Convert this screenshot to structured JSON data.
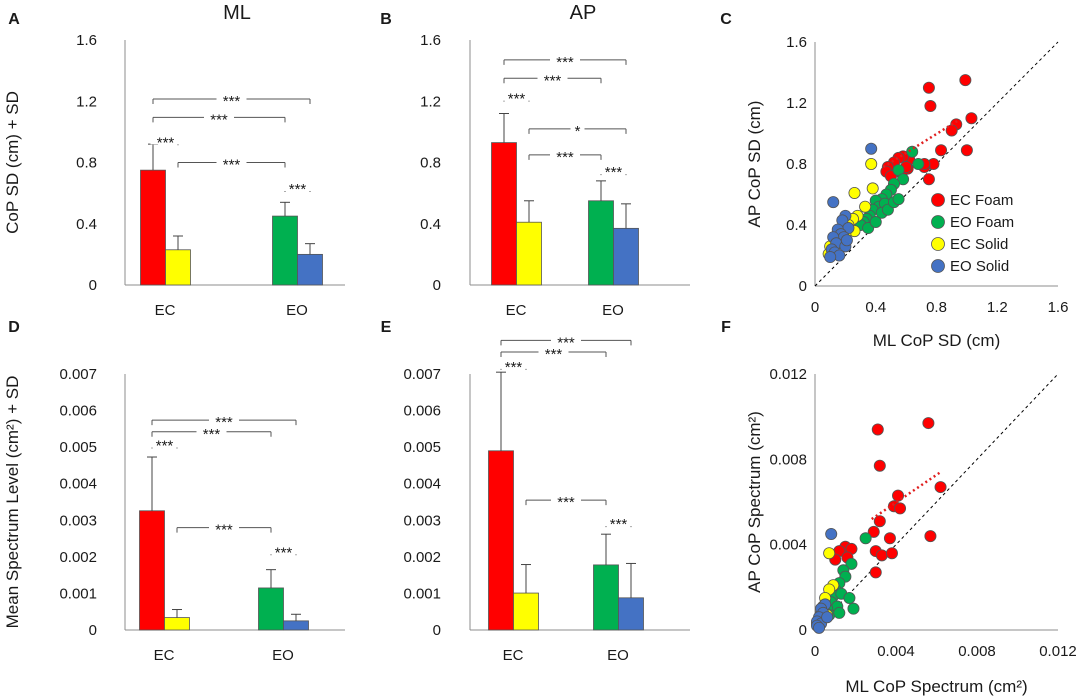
{
  "figure": {
    "colors": {
      "ec_foam": "#ff0000",
      "ec_solid": "#ffff00",
      "eo_foam": "#00b050",
      "eo_solid": "#4472c4",
      "axis": "#8c8c8c",
      "text": "#1a1a1a",
      "fit": "#e02020",
      "identity": "#000000"
    }
  },
  "chart_data": [
    {
      "id": "A",
      "type": "bar",
      "panel_label": "A",
      "title": "ML",
      "ylabel": "CoP SD (cm) + SD",
      "xlabel": "",
      "categories": [
        "EC",
        "EO"
      ],
      "ylim": [
        0,
        1.6
      ],
      "yticks": [
        0,
        0.4,
        0.8,
        1.2,
        1.6
      ],
      "ytick_labels": [
        "0",
        "0.4",
        "0.8",
        "1.2",
        "1.6"
      ],
      "series": [
        {
          "name": "Foam",
          "values": [
            0.75,
            0.45
          ],
          "errors": [
            0.17,
            0.09
          ],
          "colors": [
            "ec_foam",
            "eo_foam"
          ]
        },
        {
          "name": "Solid",
          "values": [
            0.23,
            0.2
          ],
          "errors": [
            0.09,
            0.07
          ],
          "colors": [
            "ec_solid",
            "eo_solid"
          ]
        }
      ],
      "significance": [
        {
          "from": "EC-Foam",
          "to": "EC-Solid",
          "label": "***",
          "level": 0.945
        },
        {
          "from": "EC-Foam",
          "to": "EO-Foam",
          "label": "***",
          "level": 1.095
        },
        {
          "from": "EC-Foam",
          "to": "EO-Solid",
          "label": "***",
          "level": 1.215
        },
        {
          "from": "EC-Solid",
          "to": "EO-Foam",
          "label": "***",
          "level": 0.8
        },
        {
          "from": "EO-Foam",
          "to": "EO-Solid",
          "label": "***",
          "level": 0.64
        }
      ]
    },
    {
      "id": "B",
      "type": "bar",
      "panel_label": "B",
      "title": "AP",
      "ylabel": "",
      "xlabel": "",
      "categories": [
        "EC",
        "EO"
      ],
      "ylim": [
        0,
        1.6
      ],
      "yticks": [
        0,
        0.4,
        0.8,
        1.2,
        1.6
      ],
      "ytick_labels": [
        "0",
        "0.4",
        "0.8",
        "1.2",
        "1.6"
      ],
      "series": [
        {
          "name": "Foam",
          "values": [
            0.93,
            0.55
          ],
          "errors": [
            0.19,
            0.13
          ],
          "colors": [
            "ec_foam",
            "eo_foam"
          ]
        },
        {
          "name": "Solid",
          "values": [
            0.41,
            0.37
          ],
          "errors": [
            0.14,
            0.16
          ],
          "colors": [
            "ec_solid",
            "eo_solid"
          ]
        }
      ],
      "significance": [
        {
          "from": "EC-Foam",
          "to": "EC-Solid",
          "label": "***",
          "level": 1.23
        },
        {
          "from": "EC-Foam",
          "to": "EO-Foam",
          "label": "***",
          "level": 1.35
        },
        {
          "from": "EC-Foam",
          "to": "EO-Solid",
          "label": "***",
          "level": 1.47
        },
        {
          "from": "EC-Solid",
          "to": "EO-Solid",
          "label": "*",
          "level": 1.02
        },
        {
          "from": "EC-Solid",
          "to": "EO-Foam",
          "label": "***",
          "level": 0.85
        },
        {
          "from": "EO-Foam",
          "to": "EO-Solid",
          "label": "***",
          "level": 0.75
        }
      ]
    },
    {
      "id": "C",
      "type": "scatter",
      "panel_label": "C",
      "xlabel": "ML CoP SD (cm)",
      "ylabel": "AP CoP SD (cm)",
      "xlim": [
        0,
        1.6
      ],
      "ylim": [
        0,
        1.6
      ],
      "xticks": [
        0,
        0.4,
        0.8,
        1.2,
        1.6
      ],
      "xtick_labels": [
        "0",
        "0.4",
        "0.8",
        "1.2",
        "1.6"
      ],
      "yticks": [
        0,
        0.4,
        0.8,
        1.2,
        1.6
      ],
      "ytick_labels": [
        "0",
        "0.4",
        "0.8",
        "1.2",
        "1.6"
      ],
      "legend": {
        "position": "right",
        "entries": [
          {
            "label": "EC Foam",
            "color": "ec_foam"
          },
          {
            "label": "EO Foam",
            "color": "eo_foam"
          },
          {
            "label": "EC Solid",
            "color": "ec_solid"
          },
          {
            "label": "EO Solid",
            "color": "eo_solid"
          }
        ]
      },
      "identity_line": true,
      "fit_line": {
        "color": "fit",
        "x": [
          0.45,
          0.95
        ],
        "y": [
          0.78,
          1.09
        ]
      },
      "series": [
        {
          "name": "EC Foam",
          "color": "ec_foam",
          "points": [
            [
              0.75,
              1.3
            ],
            [
              0.76,
              1.18
            ],
            [
              0.99,
              1.35
            ],
            [
              1.03,
              1.1
            ],
            [
              0.93,
              1.06
            ],
            [
              0.9,
              1.02
            ],
            [
              0.83,
              0.89
            ],
            [
              1.0,
              0.89
            ],
            [
              0.78,
              0.8
            ],
            [
              0.75,
              0.7
            ],
            [
              0.72,
              0.78
            ],
            [
              0.72,
              0.8
            ],
            [
              0.62,
              0.83
            ],
            [
              0.58,
              0.85
            ],
            [
              0.55,
              0.84
            ],
            [
              0.52,
              0.81
            ],
            [
              0.61,
              0.77
            ],
            [
              0.48,
              0.78
            ],
            [
              0.47,
              0.75
            ],
            [
              0.5,
              0.72
            ],
            [
              0.57,
              0.74
            ],
            [
              0.6,
              0.78
            ]
          ]
        },
        {
          "name": "EO Foam",
          "color": "eo_foam",
          "points": [
            [
              0.64,
              0.88
            ],
            [
              0.68,
              0.8
            ],
            [
              0.55,
              0.76
            ],
            [
              0.58,
              0.7
            ],
            [
              0.52,
              0.67
            ],
            [
              0.5,
              0.63
            ],
            [
              0.47,
              0.6
            ],
            [
              0.44,
              0.57
            ],
            [
              0.4,
              0.56
            ],
            [
              0.42,
              0.52
            ],
            [
              0.46,
              0.54
            ],
            [
              0.38,
              0.5
            ],
            [
              0.36,
              0.46
            ],
            [
              0.34,
              0.44
            ],
            [
              0.32,
              0.42
            ],
            [
              0.3,
              0.4
            ],
            [
              0.35,
              0.38
            ],
            [
              0.4,
              0.42
            ],
            [
              0.44,
              0.48
            ],
            [
              0.48,
              0.5
            ],
            [
              0.52,
              0.55
            ],
            [
              0.55,
              0.57
            ]
          ]
        },
        {
          "name": "EC Solid",
          "color": "ec_solid",
          "points": [
            [
              0.37,
              0.8
            ],
            [
              0.26,
              0.61
            ],
            [
              0.38,
              0.64
            ],
            [
              0.33,
              0.52
            ],
            [
              0.28,
              0.46
            ],
            [
              0.25,
              0.44
            ],
            [
              0.22,
              0.4
            ],
            [
              0.26,
              0.36
            ],
            [
              0.2,
              0.34
            ],
            [
              0.17,
              0.32
            ],
            [
              0.14,
              0.3
            ],
            [
              0.1,
              0.26
            ],
            [
              0.12,
              0.22
            ],
            [
              0.15,
              0.28
            ],
            [
              0.09,
              0.21
            ]
          ]
        },
        {
          "name": "EO Solid",
          "color": "eo_solid",
          "points": [
            [
              0.37,
              0.9
            ],
            [
              0.12,
              0.55
            ],
            [
              0.2,
              0.46
            ],
            [
              0.18,
              0.43
            ],
            [
              0.22,
              0.38
            ],
            [
              0.15,
              0.37
            ],
            [
              0.17,
              0.34
            ],
            [
              0.19,
              0.32
            ],
            [
              0.12,
              0.32
            ],
            [
              0.14,
              0.28
            ],
            [
              0.2,
              0.26
            ],
            [
              0.11,
              0.24
            ],
            [
              0.13,
              0.22
            ],
            [
              0.16,
              0.2
            ],
            [
              0.1,
              0.19
            ],
            [
              0.21,
              0.3
            ]
          ]
        }
      ]
    },
    {
      "id": "D",
      "type": "bar",
      "panel_label": "D",
      "title": "",
      "ylabel": "Mean Spectrum Level (cm²) + SD",
      "xlabel": "",
      "categories": [
        "EC",
        "EO"
      ],
      "ylim": [
        0,
        0.007
      ],
      "yticks": [
        0,
        0.001,
        0.002,
        0.003,
        0.004,
        0.005,
        0.006,
        0.007
      ],
      "ytick_labels": [
        "0",
        "0.001",
        "0.002",
        "0.003",
        "0.004",
        "0.005",
        "0.006",
        "0.007"
      ],
      "series": [
        {
          "name": "Foam",
          "values": [
            0.00326,
            0.00115
          ],
          "errors": [
            0.00147,
            0.0005
          ],
          "colors": [
            "ec_foam",
            "eo_foam"
          ]
        },
        {
          "name": "Solid",
          "values": [
            0.00034,
            0.00025
          ],
          "errors": [
            0.00022,
            0.00018
          ],
          "colors": [
            "ec_solid",
            "eo_solid"
          ]
        }
      ],
      "significance": [
        {
          "from": "EC-Foam",
          "to": "EC-Solid",
          "label": "***",
          "level": 0.0051
        },
        {
          "from": "EC-Foam",
          "to": "EO-Foam",
          "label": "***",
          "level": 0.00542
        },
        {
          "from": "EC-Foam",
          "to": "EO-Solid",
          "label": "***",
          "level": 0.00574
        },
        {
          "from": "EC-Solid",
          "to": "EO-Foam",
          "label": "***",
          "level": 0.0028
        },
        {
          "from": "EO-Foam",
          "to": "EO-Solid",
          "label": "***",
          "level": 0.00218
        }
      ]
    },
    {
      "id": "E",
      "type": "bar",
      "panel_label": "E",
      "title": "",
      "ylabel": "",
      "xlabel": "",
      "categories": [
        "EC",
        "EO"
      ],
      "ylim": [
        0,
        0.007
      ],
      "yticks": [
        0,
        0.001,
        0.002,
        0.003,
        0.004,
        0.005,
        0.006,
        0.007
      ],
      "ytick_labels": [
        "0",
        "0.001",
        "0.002",
        "0.003",
        "0.004",
        "0.005",
        "0.006",
        "0.007"
      ],
      "series": [
        {
          "name": "Foam",
          "values": [
            0.0049,
            0.00178
          ],
          "errors": [
            0.00215,
            0.00084
          ],
          "colors": [
            "ec_foam",
            "eo_foam"
          ]
        },
        {
          "name": "Solid",
          "values": [
            0.00101,
            0.00088
          ],
          "errors": [
            0.00078,
            0.00094
          ],
          "colors": [
            "ec_solid",
            "eo_solid"
          ]
        }
      ],
      "significance": [
        {
          "from": "EC-Foam",
          "to": "EC-Solid",
          "label": "***",
          "level": 0.00725
        },
        {
          "from": "EC-Foam",
          "to": "EO-Foam",
          "label": "***",
          "level": 0.0076
        },
        {
          "from": "EC-Foam",
          "to": "EO-Solid",
          "label": "***",
          "level": 0.00792
        },
        {
          "from": "EC-Solid",
          "to": "EO-Foam",
          "label": "***",
          "level": 0.00355
        },
        {
          "from": "EO-Foam",
          "to": "EO-Solid",
          "label": "***",
          "level": 0.00295
        }
      ]
    },
    {
      "id": "F",
      "type": "scatter",
      "panel_label": "F",
      "xlabel": "ML CoP Spectrum (cm²)",
      "ylabel": "AP CoP Spectrum (cm²)",
      "xlim": [
        0,
        0.012
      ],
      "ylim": [
        0,
        0.012
      ],
      "xticks": [
        0,
        0.004,
        0.008,
        0.012
      ],
      "xtick_labels": [
        "0",
        "0.004",
        "0.008",
        "0.012"
      ],
      "yticks": [
        0,
        0.004,
        0.008,
        0.012
      ],
      "ytick_labels": [
        "0",
        "0.004",
        "0.008",
        "0.012"
      ],
      "identity_line": true,
      "fit_line": {
        "color": "fit",
        "x": [
          0.0028,
          0.0062
        ],
        "y": [
          0.0052,
          0.0074
        ]
      },
      "series": [
        {
          "name": "EC Foam",
          "color": "ec_foam",
          "points": [
            [
              0.0031,
              0.0094
            ],
            [
              0.0032,
              0.0077
            ],
            [
              0.0056,
              0.0097
            ],
            [
              0.0062,
              0.0067
            ],
            [
              0.0041,
              0.0063
            ],
            [
              0.0039,
              0.0058
            ],
            [
              0.0042,
              0.0057
            ],
            [
              0.0032,
              0.0051
            ],
            [
              0.0029,
              0.0046
            ],
            [
              0.0057,
              0.0044
            ],
            [
              0.0037,
              0.0043
            ],
            [
              0.003,
              0.0037
            ],
            [
              0.0033,
              0.0035
            ],
            [
              0.0038,
              0.0036
            ],
            [
              0.0015,
              0.0039
            ],
            [
              0.0018,
              0.0038
            ],
            [
              0.0012,
              0.0037
            ],
            [
              0.001,
              0.0033
            ],
            [
              0.0016,
              0.0034
            ],
            [
              0.003,
              0.0027
            ]
          ]
        },
        {
          "name": "EO Foam",
          "color": "eo_foam",
          "points": [
            [
              0.0025,
              0.0043
            ],
            [
              0.0018,
              0.0031
            ],
            [
              0.0014,
              0.0028
            ],
            [
              0.0015,
              0.0025
            ],
            [
              0.0012,
              0.0022
            ],
            [
              0.001,
              0.0019
            ],
            [
              0.0009,
              0.0016
            ],
            [
              0.0013,
              0.0017
            ],
            [
              0.0017,
              0.0015
            ],
            [
              0.0008,
              0.0013
            ],
            [
              0.0011,
              0.0011
            ],
            [
              0.0006,
              0.001
            ],
            [
              0.0005,
              0.0008
            ],
            [
              0.0004,
              0.0006
            ],
            [
              0.0003,
              0.0005
            ],
            [
              0.0007,
              0.0007
            ],
            [
              0.0012,
              0.0008
            ],
            [
              0.0019,
              0.001
            ]
          ]
        },
        {
          "name": "EC Solid",
          "color": "ec_solid",
          "points": [
            [
              0.0007,
              0.0036
            ],
            [
              0.0009,
              0.0021
            ],
            [
              0.0007,
              0.0019
            ],
            [
              0.0005,
              0.0015
            ],
            [
              0.0004,
              0.0011
            ],
            [
              0.0003,
              0.0008
            ],
            [
              0.0002,
              0.0005
            ],
            [
              0.0001,
              0.0003
            ],
            [
              0.0006,
              0.0007
            ],
            [
              0.0002,
              0.0002
            ]
          ]
        },
        {
          "name": "EO Solid",
          "color": "eo_solid",
          "points": [
            [
              0.0008,
              0.0045
            ],
            [
              0.0005,
              0.0012
            ],
            [
              0.0003,
              0.001
            ],
            [
              0.0004,
              0.0008
            ],
            [
              0.0002,
              0.0006
            ],
            [
              0.0001,
              0.0004
            ],
            [
              0.0003,
              0.0003
            ],
            [
              0.0001,
              0.0002
            ],
            [
              0.0002,
              0.0001
            ],
            [
              0.0006,
              0.0006
            ]
          ]
        }
      ]
    }
  ]
}
